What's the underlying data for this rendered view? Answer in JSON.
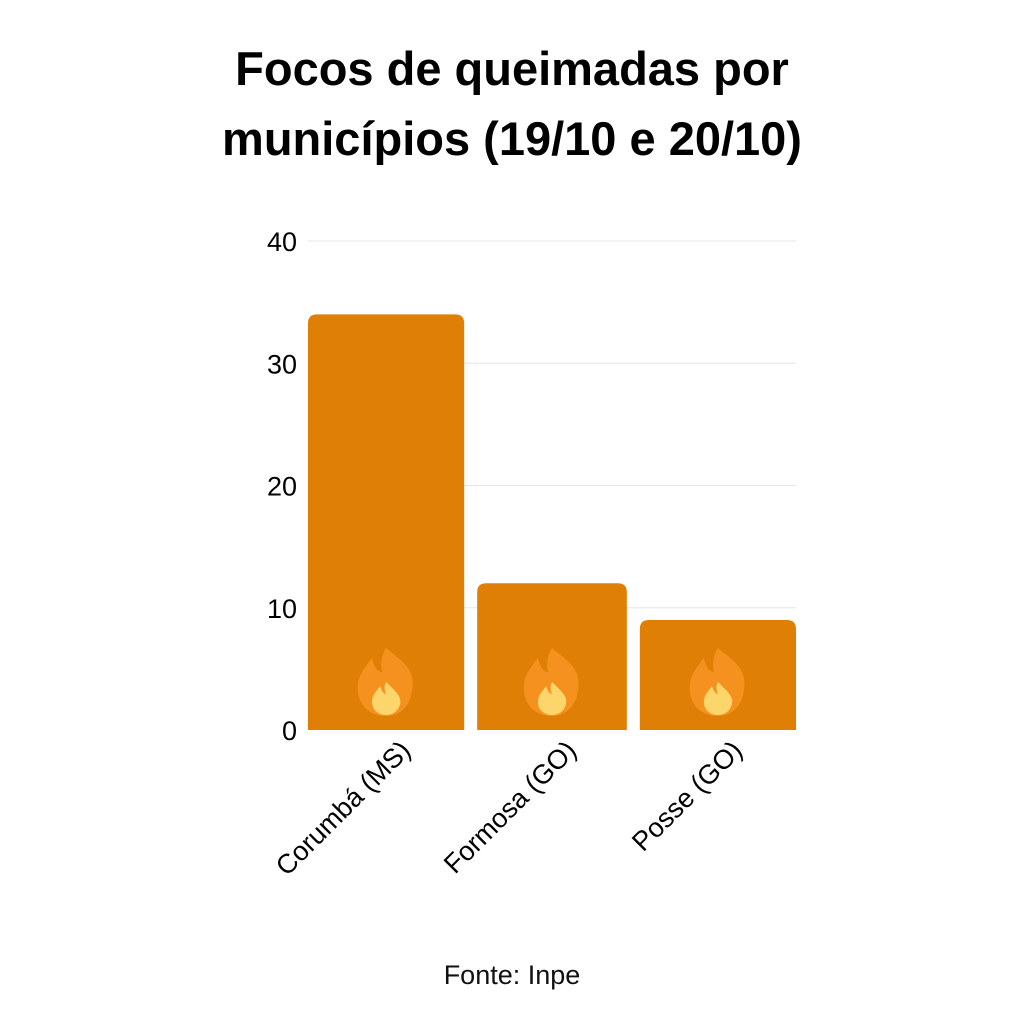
{
  "title_lines": [
    "Focos de queimadas por",
    "municípios (19/10 e 20/10)"
  ],
  "source": "Fonte: Inpe",
  "colors": {
    "bar": "#e07f05",
    "grid": "#e6e6e6",
    "text": "#000000",
    "flame_outer": "#f5911f",
    "flame_inner": "#fcd66b"
  },
  "bar_icon": "fire-icon",
  "chart_data": {
    "type": "bar",
    "title": "Focos de queimadas por municípios (19/10 e 20/10)",
    "categories": [
      "Corumbá (MS)",
      "Formosa (GO)",
      "Posse (GO)"
    ],
    "values": [
      34,
      12,
      9
    ],
    "ylim": [
      0,
      40
    ],
    "yticks": [
      0,
      10,
      20,
      30,
      40
    ],
    "grid": true,
    "legend": "none",
    "xlabel": "",
    "ylabel": ""
  }
}
